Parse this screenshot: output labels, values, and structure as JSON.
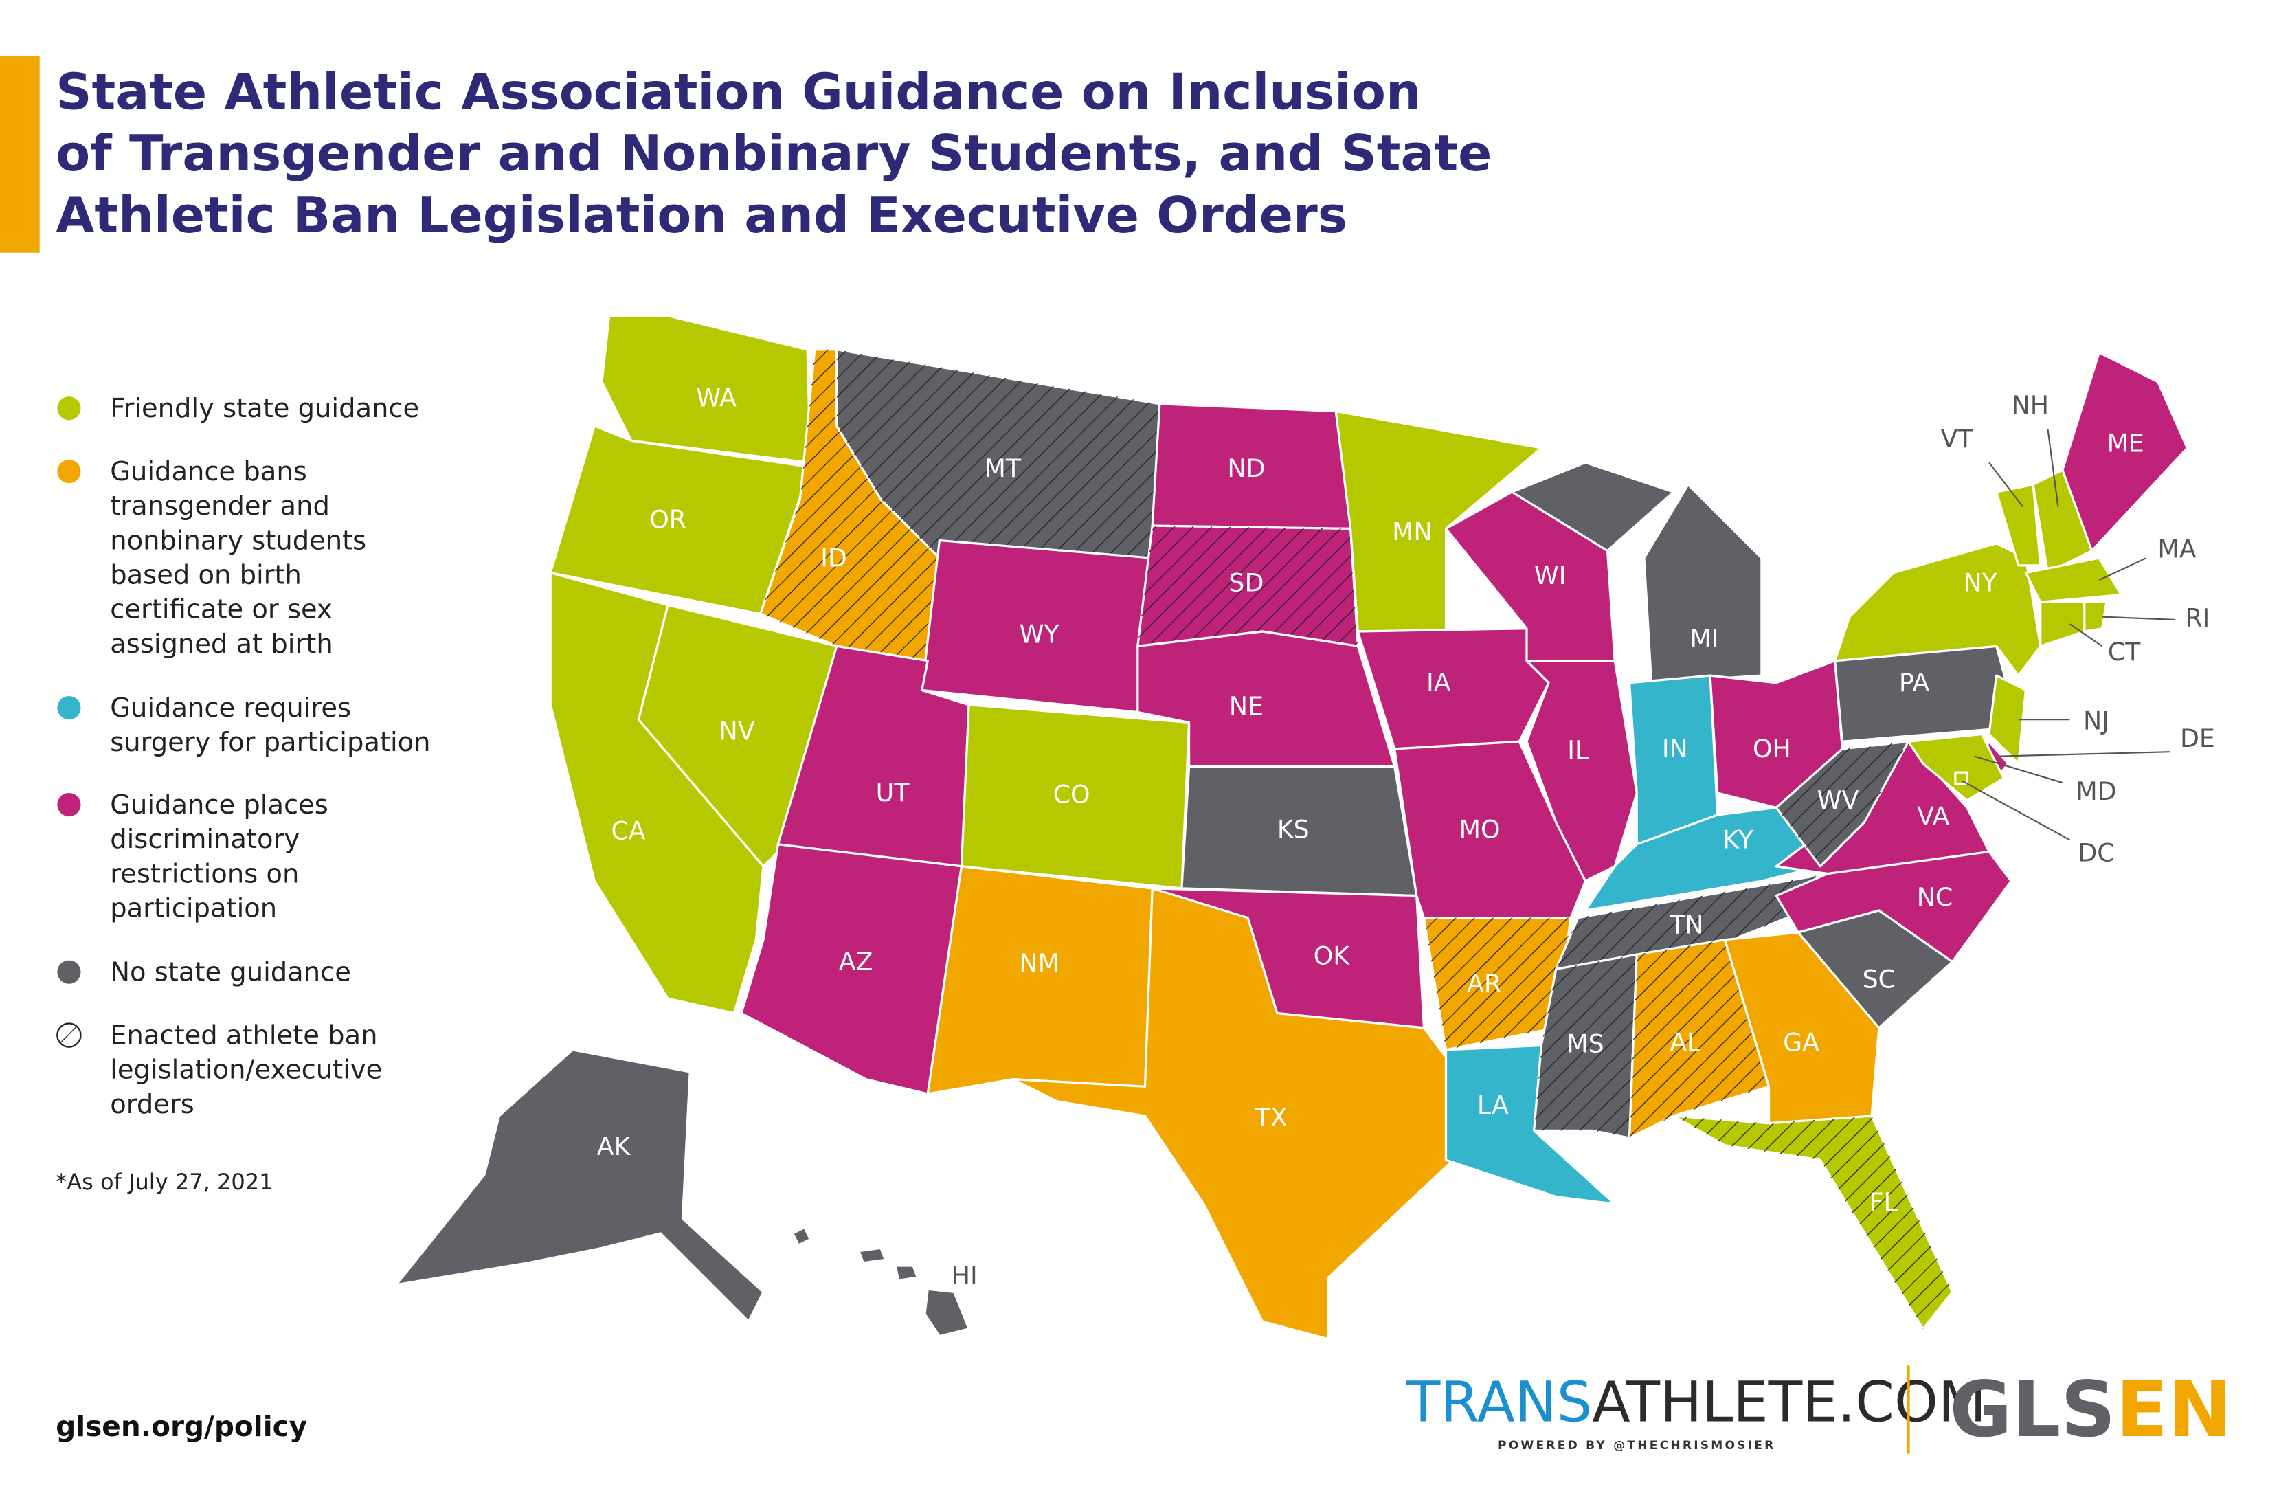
{
  "title_lines": [
    "State Athletic Association Guidance on Inclusion",
    "of Transgender and Nonbinary Students, and State",
    "Athletic Ban Legislation and Executive Orders"
  ],
  "legend": [
    {
      "color": "#b5c800",
      "lines": [
        "Friendly state guidance"
      ]
    },
    {
      "color": "#f2a700",
      "lines": [
        "Guidance bans",
        "transgender and",
        "nonbinary students",
        "based on birth",
        "certificate or sex",
        "assigned at birth"
      ]
    },
    {
      "color": "#35b5cc",
      "lines": [
        "Guidance requires",
        "surgery for participation"
      ]
    },
    {
      "color": "#be2279",
      "lines": [
        "Guidance places",
        "discriminatory",
        "restrictions on",
        "participation"
      ]
    },
    {
      "color": "#5f6166",
      "lines": [
        "No state guidance"
      ]
    },
    {
      "pattern": "hatch",
      "lines": [
        "Enacted athlete ban",
        "legislation/executive",
        "orders"
      ]
    }
  ],
  "footnote": "*As of July 27, 2021",
  "footer_url": "glsen.org/policy",
  "transathlete": {
    "prefix": "TRANS",
    "rest": "ATHLETE.COM",
    "tagline": "POWERED BY @THECHRISMOSIER"
  },
  "glsen": {
    "start": "GLS",
    "end": "EN"
  },
  "states": [
    {
      "abbr": "WA",
      "color": "#b5c800",
      "hatched": false
    },
    {
      "abbr": "OR",
      "color": "#b5c800",
      "hatched": false
    },
    {
      "abbr": "CA",
      "color": "#b5c800",
      "hatched": false
    },
    {
      "abbr": "NV",
      "color": "#b5c800",
      "hatched": false
    },
    {
      "abbr": "ID",
      "color": "#f2a700",
      "hatched": true
    },
    {
      "abbr": "MT",
      "color": "#5f6166",
      "hatched": true
    },
    {
      "abbr": "WY",
      "color": "#be2279",
      "hatched": false
    },
    {
      "abbr": "UT",
      "color": "#be2279",
      "hatched": false
    },
    {
      "abbr": "CO",
      "color": "#b5c800",
      "hatched": false
    },
    {
      "abbr": "AZ",
      "color": "#be2279",
      "hatched": false
    },
    {
      "abbr": "NM",
      "color": "#f2a700",
      "hatched": false
    },
    {
      "abbr": "ND",
      "color": "#be2279",
      "hatched": false
    },
    {
      "abbr": "SD",
      "color": "#be2279",
      "hatched": true
    },
    {
      "abbr": "NE",
      "color": "#be2279",
      "hatched": false
    },
    {
      "abbr": "KS",
      "color": "#5f6166",
      "hatched": false
    },
    {
      "abbr": "OK",
      "color": "#be2279",
      "hatched": false
    },
    {
      "abbr": "TX",
      "color": "#f2a700",
      "hatched": false
    },
    {
      "abbr": "MN",
      "color": "#b5c800",
      "hatched": false
    },
    {
      "abbr": "IA",
      "color": "#be2279",
      "hatched": false
    },
    {
      "abbr": "MO",
      "color": "#be2279",
      "hatched": false
    },
    {
      "abbr": "AR",
      "color": "#f2a700",
      "hatched": true
    },
    {
      "abbr": "LA",
      "color": "#35b5cc",
      "hatched": false
    },
    {
      "abbr": "WI",
      "color": "#be2279",
      "hatched": false
    },
    {
      "abbr": "IL",
      "color": "#be2279",
      "hatched": false
    },
    {
      "abbr": "MI",
      "color": "#5f6166",
      "hatched": false
    },
    {
      "abbr": "IN",
      "color": "#35b5cc",
      "hatched": false
    },
    {
      "abbr": "OH",
      "color": "#be2279",
      "hatched": false
    },
    {
      "abbr": "KY",
      "color": "#35b5cc",
      "hatched": false
    },
    {
      "abbr": "TN",
      "color": "#5f6166",
      "hatched": true
    },
    {
      "abbr": "MS",
      "color": "#5f6166",
      "hatched": true
    },
    {
      "abbr": "AL",
      "color": "#f2a700",
      "hatched": true
    },
    {
      "abbr": "GA",
      "color": "#f2a700",
      "hatched": false
    },
    {
      "abbr": "FL",
      "color": "#b5c800",
      "hatched": true
    },
    {
      "abbr": "SC",
      "color": "#5f6166",
      "hatched": false
    },
    {
      "abbr": "NC",
      "color": "#be2279",
      "hatched": false
    },
    {
      "abbr": "VA",
      "color": "#be2279",
      "hatched": false
    },
    {
      "abbr": "WV",
      "color": "#5f6166",
      "hatched": true
    },
    {
      "abbr": "PA",
      "color": "#5f6166",
      "hatched": false
    },
    {
      "abbr": "NY",
      "color": "#b5c800",
      "hatched": false
    },
    {
      "abbr": "VT",
      "color": "#b5c800",
      "hatched": false
    },
    {
      "abbr": "NH",
      "color": "#b5c800",
      "hatched": false
    },
    {
      "abbr": "ME",
      "color": "#be2279",
      "hatched": false
    },
    {
      "abbr": "MA",
      "color": "#b5c800",
      "hatched": false
    },
    {
      "abbr": "CT",
      "color": "#b5c800",
      "hatched": false
    },
    {
      "abbr": "RI",
      "color": "#b5c800",
      "hatched": false
    },
    {
      "abbr": "NJ",
      "color": "#b5c800",
      "hatched": false
    },
    {
      "abbr": "DE",
      "color": "#be2279",
      "hatched": false
    },
    {
      "abbr": "MD",
      "color": "#b5c800",
      "hatched": false
    },
    {
      "abbr": "DC",
      "color": "#b5c800",
      "hatched": false
    },
    {
      "abbr": "AK",
      "color": "#5f6166",
      "hatched": false
    },
    {
      "abbr": "HI",
      "color": "#5f6166",
      "hatched": false
    }
  ]
}
